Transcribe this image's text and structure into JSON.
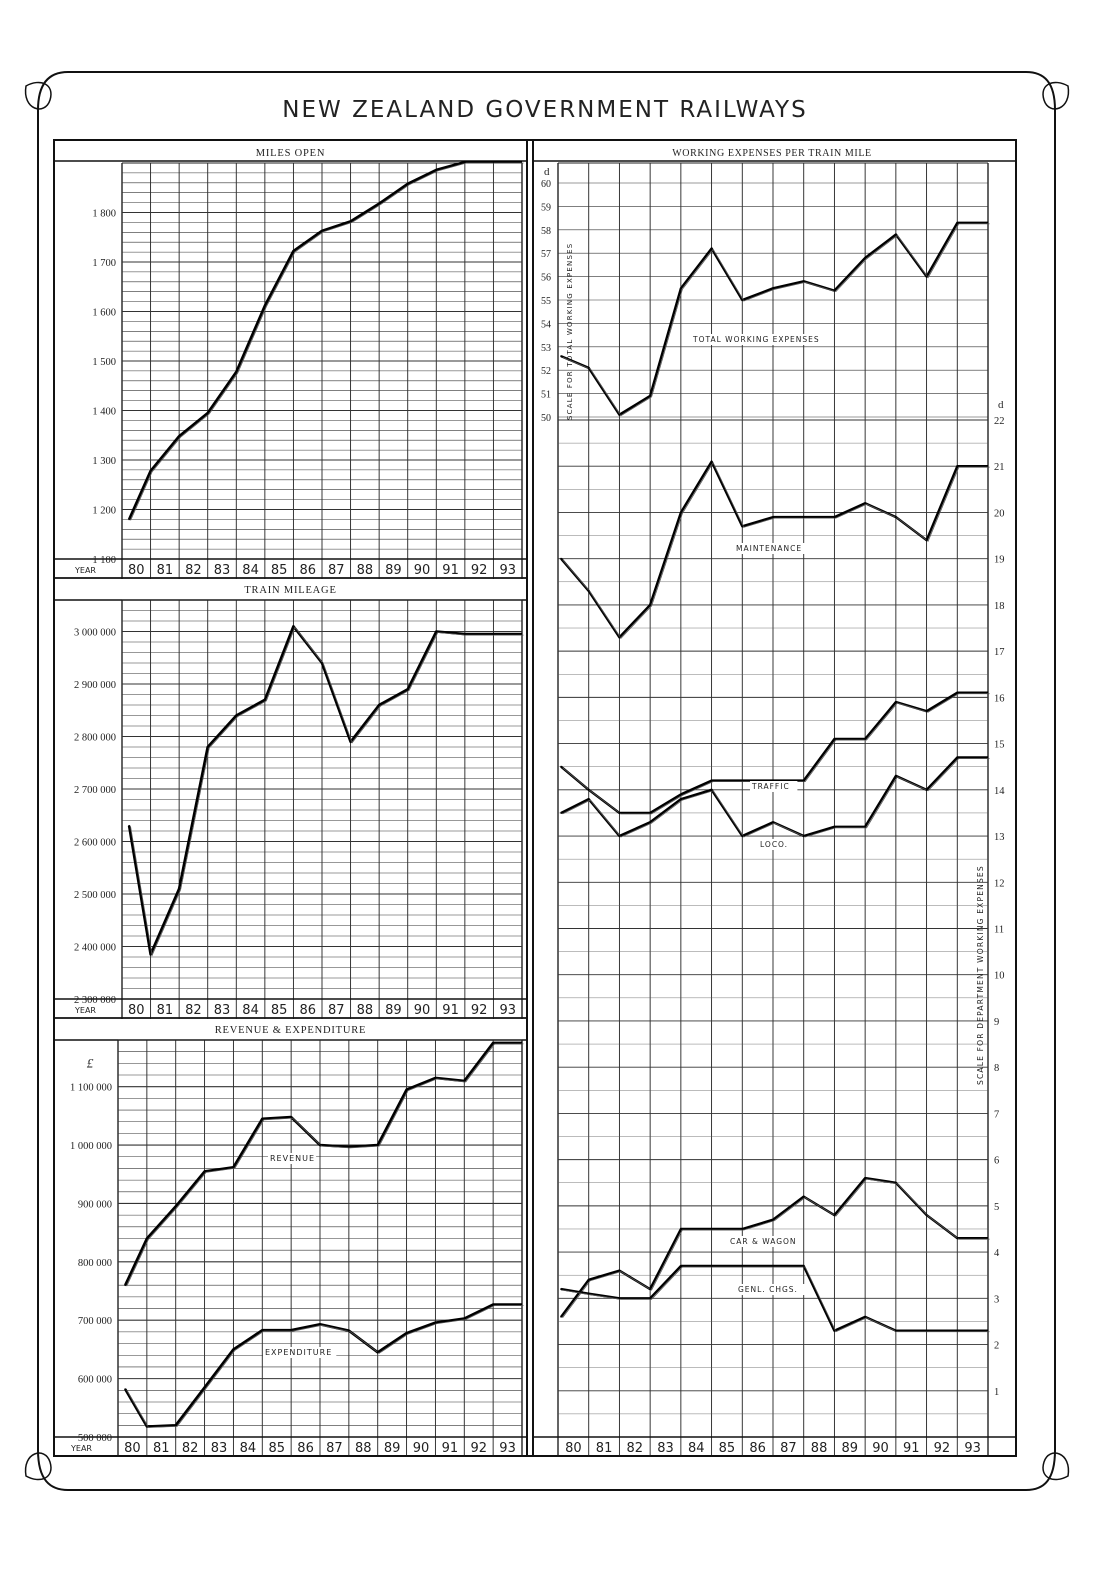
{
  "title": "NEW ZEALAND GOVERNMENT RAILWAYS",
  "year_label": "YEAR",
  "chart_data": [
    {
      "id": "miles_open",
      "type": "line",
      "title": "MILES OPEN",
      "categories": [
        "80",
        "81",
        "82",
        "83",
        "84",
        "85",
        "86",
        "87",
        "88",
        "89",
        "90",
        "91",
        "92",
        "93"
      ],
      "ylim": [
        1100,
        1900
      ],
      "yticks": [
        "1 100",
        "1 200",
        "1 300",
        "1 400",
        "1 500",
        "1 600",
        "1 700",
        "1 800"
      ],
      "ytick_values": [
        1100,
        1200,
        1300,
        1400,
        1500,
        1600,
        1700,
        1800
      ],
      "series": [
        {
          "values": [
            1180,
            1278,
            1348,
            1395,
            1478,
            1612,
            1722,
            1763,
            1782,
            1818,
            1858,
            1886,
            1902,
            1902
          ]
        }
      ]
    },
    {
      "id": "train_mileage",
      "type": "line",
      "title": "TRAIN MILEAGE",
      "categories": [
        "80",
        "81",
        "82",
        "83",
        "84",
        "85",
        "86",
        "87",
        "88",
        "89",
        "90",
        "91",
        "92",
        "93"
      ],
      "ylim": [
        2300000,
        3060000
      ],
      "yticks": [
        "2 300 000",
        "2 400 000",
        "2 500 000",
        "2 600 000",
        "2 700 000",
        "2 800 000",
        "2 900 000",
        "3 000 000"
      ],
      "ytick_values": [
        2300000,
        2400000,
        2500000,
        2600000,
        2700000,
        2800000,
        2900000,
        3000000
      ],
      "series": [
        {
          "values": [
            2630000,
            2385000,
            2510000,
            2780000,
            2840000,
            2870000,
            3010000,
            2940000,
            2790000,
            2860000,
            2890000,
            3000000,
            2995000,
            2995000
          ]
        }
      ]
    },
    {
      "id": "revenue_expenditure",
      "type": "line",
      "title": "REVENUE & EXPENDITURE",
      "unit": "£",
      "categories": [
        "80",
        "81",
        "82",
        "83",
        "84",
        "85",
        "86",
        "87",
        "88",
        "89",
        "90",
        "91",
        "92",
        "93"
      ],
      "ylim": [
        500000,
        1180000
      ],
      "yticks": [
        "500 000",
        "600 000",
        "700 000",
        "800 000",
        "900 000",
        "1 000 000",
        "1 100 000"
      ],
      "ytick_values": [
        500000,
        600000,
        700000,
        800000,
        900000,
        1000000,
        1100000
      ],
      "series": [
        {
          "name": "REVENUE",
          "values": [
            760000,
            840000,
            895000,
            955000,
            962000,
            1045000,
            1048000,
            1000000,
            997000,
            1000000,
            1095000,
            1115000,
            1110000,
            1175000
          ]
        },
        {
          "name": "EXPENDITURE",
          "values": [
            582000,
            518000,
            520000,
            585000,
            650000,
            683000,
            683000,
            693000,
            682000,
            645000,
            678000,
            696000,
            703000,
            727000
          ]
        }
      ]
    },
    {
      "id": "working_expenses",
      "type": "line",
      "title": "WORKING EXPENSES PER TRAIN MILE",
      "categories": [
        "80",
        "81",
        "82",
        "83",
        "84",
        "85",
        "86",
        "87",
        "88",
        "89",
        "90",
        "91",
        "92",
        "93"
      ],
      "total_axis": {
        "unit": "d",
        "label": "SCALE FOR TOTAL WORKING EXPENSES",
        "ylim": [
          50,
          60
        ],
        "ticks": [
          "50",
          "51",
          "52",
          "53",
          "54",
          "55",
          "56",
          "57",
          "58",
          "59",
          "60"
        ]
      },
      "dept_axis": {
        "unit": "d",
        "label": "SCALE FOR DEPARTMENT WORKING EXPENSES",
        "ylim": [
          0,
          22
        ],
        "ticks": [
          "1",
          "2",
          "3",
          "4",
          "5",
          "6",
          "7",
          "8",
          "9",
          "10",
          "11",
          "12",
          "13",
          "14",
          "15",
          "16",
          "17",
          "18",
          "19",
          "20",
          "21",
          "22"
        ]
      },
      "series": [
        {
          "name": "TOTAL WORKING EXPENSES",
          "axis": "total",
          "values": [
            52.6,
            52.1,
            50.1,
            50.9,
            55.5,
            57.2,
            55.0,
            55.5,
            55.8,
            55.4,
            56.8,
            57.8,
            56.0,
            58.3
          ]
        },
        {
          "name": "MAINTENANCE",
          "axis": "dept",
          "values": [
            19.0,
            18.3,
            17.3,
            18.0,
            20.0,
            21.1,
            19.7,
            19.9,
            19.9,
            19.9,
            20.2,
            19.9,
            19.4,
            21.0
          ]
        },
        {
          "name": "TRAFFIC",
          "axis": "dept",
          "values": [
            14.5,
            14.0,
            13.5,
            13.5,
            13.9,
            14.2,
            14.2,
            14.2,
            14.2,
            15.1,
            15.1,
            15.9,
            15.7,
            16.1
          ]
        },
        {
          "name": "LOCO.",
          "axis": "dept",
          "values": [
            13.5,
            13.8,
            13.0,
            13.3,
            13.8,
            14.0,
            13.0,
            13.3,
            13.0,
            13.2,
            13.2,
            14.3,
            14.0,
            14.7
          ]
        },
        {
          "name": "CAR & WAGON",
          "axis": "dept",
          "values": [
            2.6,
            3.4,
            3.6,
            3.2,
            4.5,
            4.5,
            4.5,
            4.7,
            5.2,
            4.8,
            5.6,
            5.5,
            4.8,
            4.3
          ]
        },
        {
          "name": "GENL. CHGS.",
          "axis": "dept",
          "values": [
            3.2,
            3.1,
            3.0,
            3.0,
            3.7,
            3.7,
            3.7,
            3.7,
            3.7,
            2.3,
            2.6,
            2.3,
            2.3,
            2.3
          ]
        }
      ]
    }
  ]
}
